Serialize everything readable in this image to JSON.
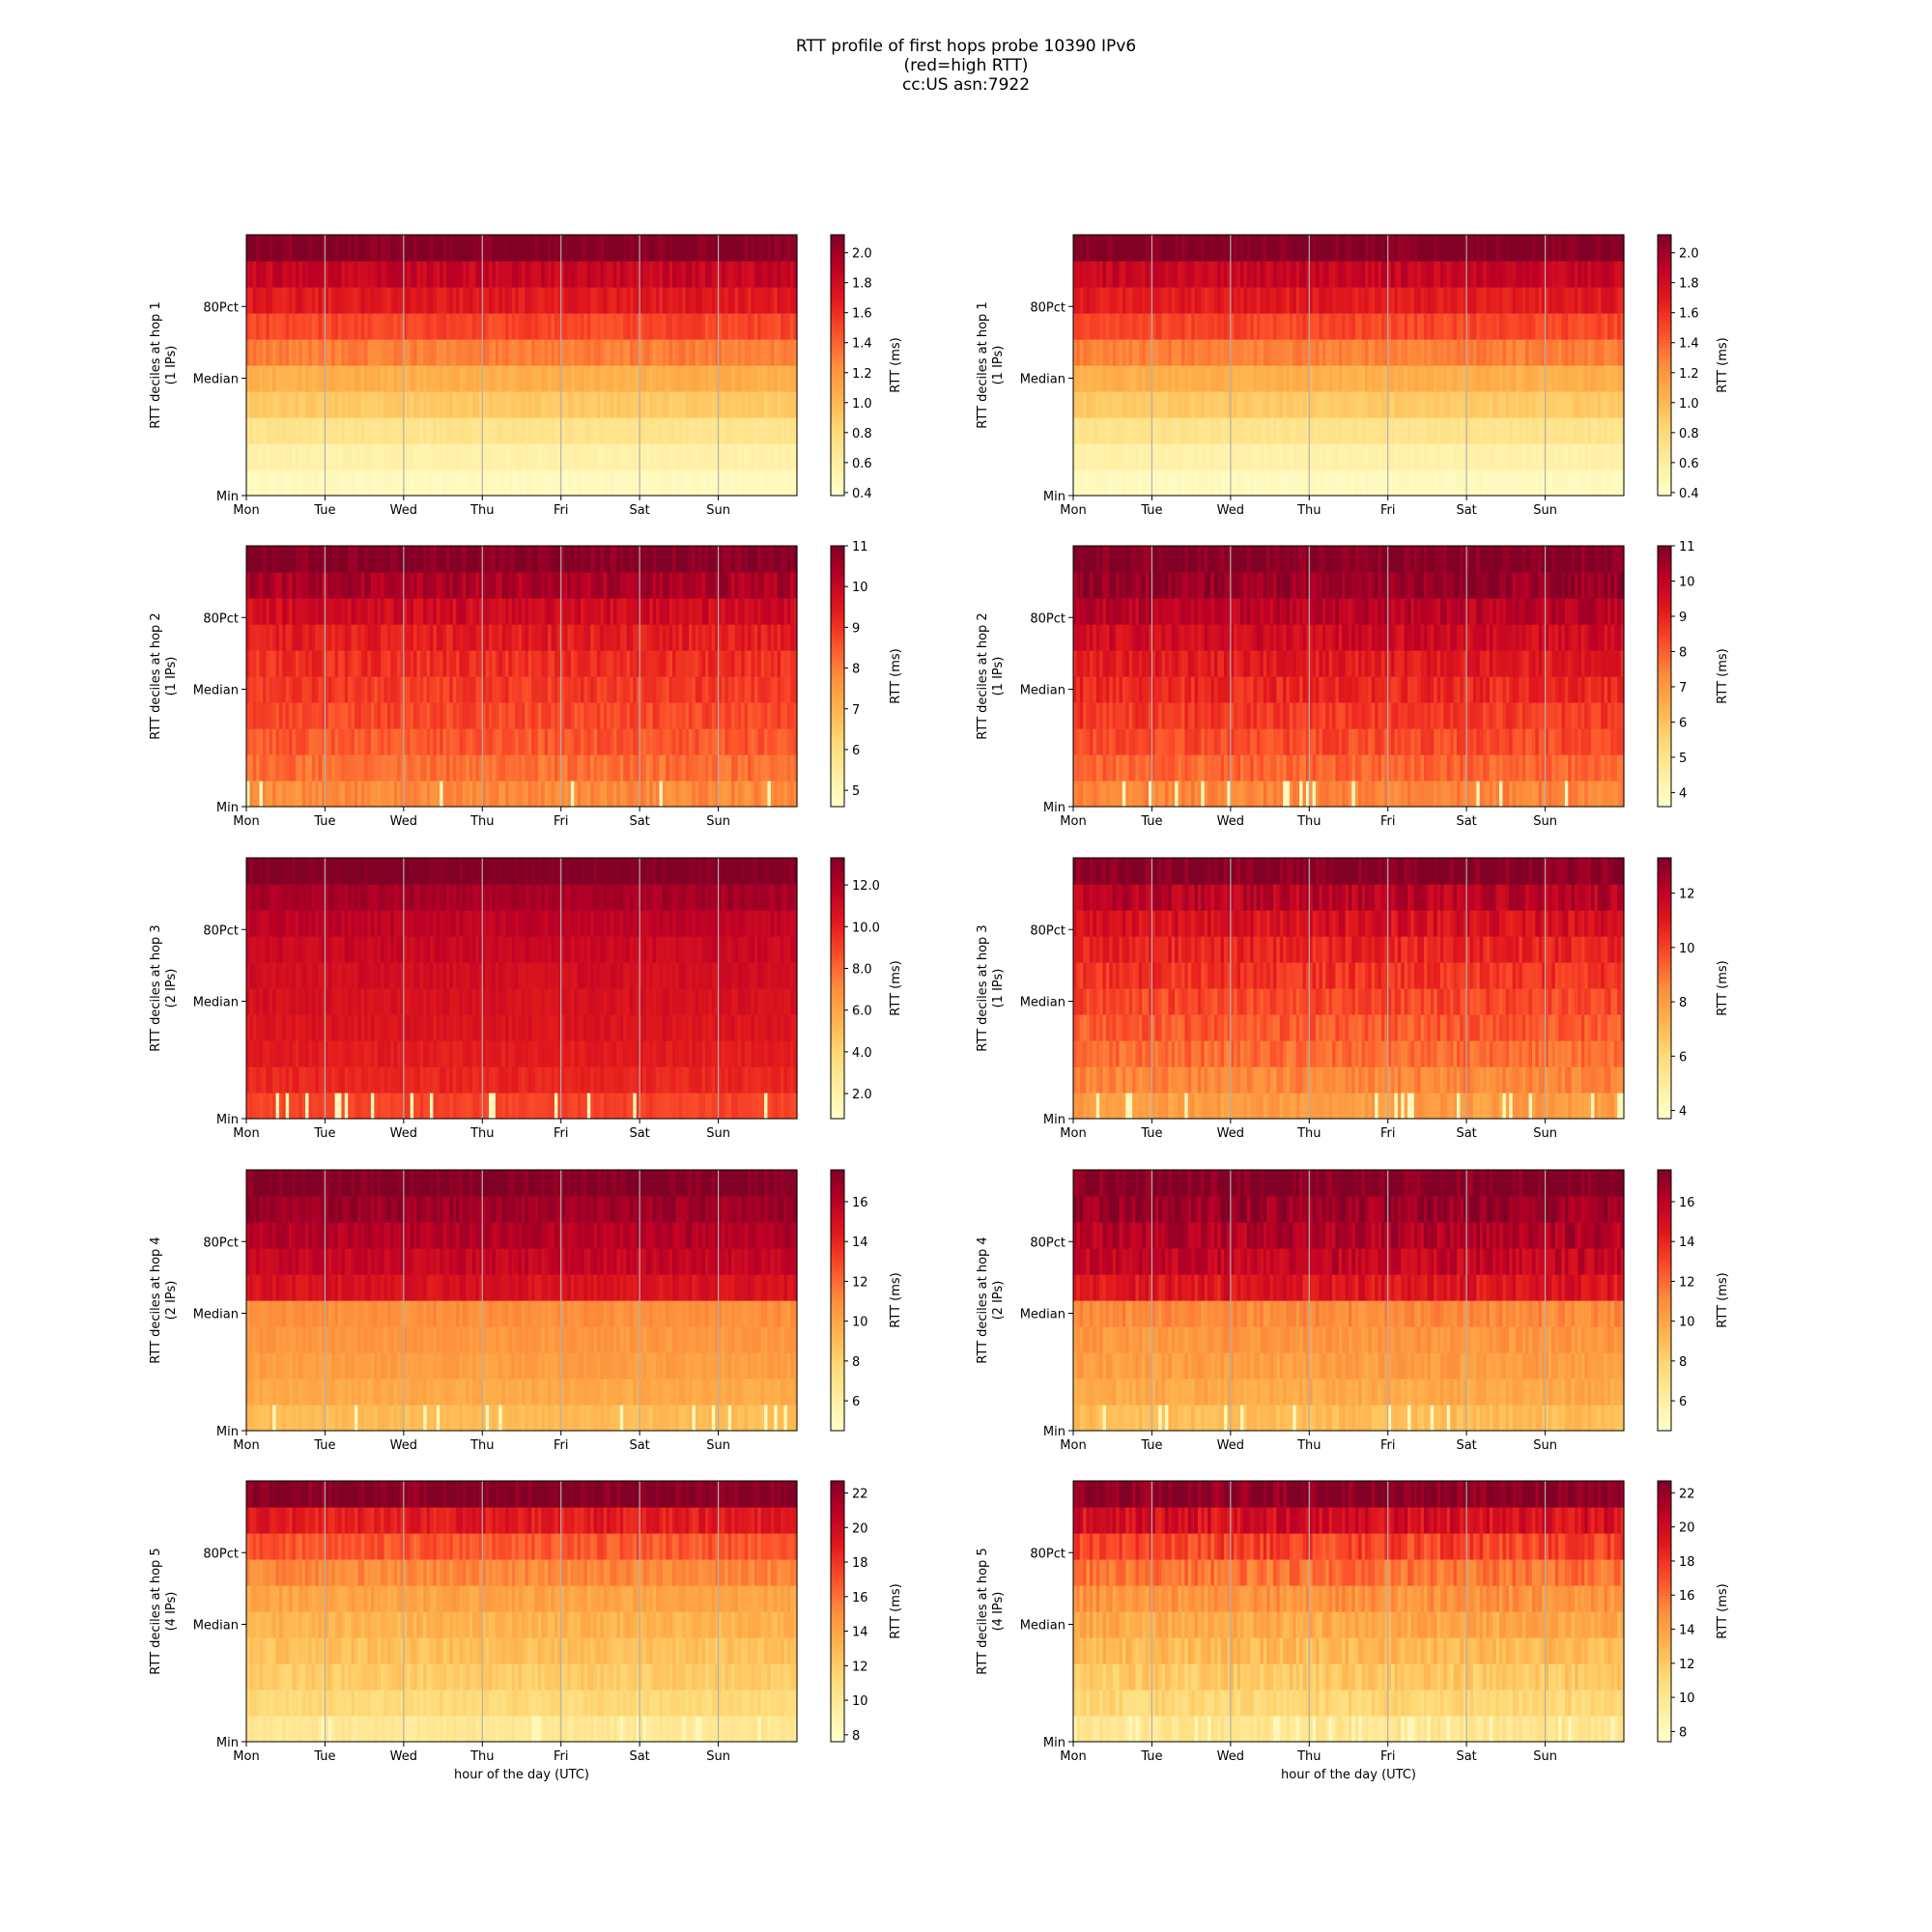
{
  "figure": {
    "title_lines": [
      "RTT profile of first hops probe 10390 IPv6",
      "(red=high RTT)",
      "cc:US asn:7922"
    ],
    "xlabel": "hour of the day (UTC)"
  },
  "chart_data": [
    {
      "type": "heatmap",
      "id": "hop1-left",
      "ylabel": "RTT deciles at hop 1",
      "ylabel2": "(1 IPs)",
      "cbar_label": "RTT (ms)",
      "xticks": [
        "Mon",
        "Tue",
        "Wed",
        "Thu",
        "Fri",
        "Sat",
        "Sun"
      ],
      "yticks": [
        "Min",
        "Median",
        "80Pct"
      ],
      "clim": [
        0.38,
        2.12
      ],
      "cbar_ticks": [
        0.4,
        0.6,
        0.8,
        1.0,
        1.2,
        1.4,
        1.6,
        1.8,
        2.0
      ],
      "decile_profile": [
        0.45,
        0.55,
        0.7,
        0.9,
        1.05,
        1.3,
        1.5,
        1.7,
        1.85,
        2.12
      ],
      "variability": 0.05,
      "xlabel": false
    },
    {
      "type": "heatmap",
      "id": "hop1-right",
      "ylabel": "RTT deciles at hop 1",
      "ylabel2": "(1 IPs)",
      "cbar_label": "RTT (ms)",
      "xticks": [
        "Mon",
        "Tue",
        "Wed",
        "Thu",
        "Fri",
        "Sat",
        "Sun"
      ],
      "yticks": [
        "Min",
        "Median",
        "80Pct"
      ],
      "clim": [
        0.38,
        2.12
      ],
      "cbar_ticks": [
        0.4,
        0.6,
        0.8,
        1.0,
        1.2,
        1.4,
        1.6,
        1.8,
        2.0
      ],
      "decile_profile": [
        0.45,
        0.55,
        0.7,
        0.9,
        1.05,
        1.3,
        1.5,
        1.7,
        1.85,
        2.12
      ],
      "variability": 0.05,
      "xlabel": false
    },
    {
      "type": "heatmap",
      "id": "hop2-left",
      "ylabel": "RTT deciles at hop 2",
      "ylabel2": "(1 IPs)",
      "cbar_label": "RTT (ms)",
      "xticks": [
        "Mon",
        "Tue",
        "Wed",
        "Thu",
        "Fri",
        "Sat",
        "Sun"
      ],
      "yticks": [
        "Min",
        "Median",
        "80Pct"
      ],
      "clim": [
        4.6,
        11
      ],
      "cbar_ticks": [
        5,
        6,
        7,
        8,
        9,
        10,
        11
      ],
      "decile_profile": [
        7.8,
        8.2,
        8.5,
        8.7,
        8.9,
        9.1,
        9.4,
        9.8,
        10.4,
        11
      ],
      "variability": 0.04,
      "xlabel": false
    },
    {
      "type": "heatmap",
      "id": "hop2-right",
      "ylabel": "RTT deciles at hop 2",
      "ylabel2": "(1 IPs)",
      "cbar_label": "RTT (ms)",
      "xticks": [
        "Mon",
        "Tue",
        "Wed",
        "Thu",
        "Fri",
        "Sat",
        "Sun"
      ],
      "yticks": [
        "Min",
        "Median",
        "80Pct"
      ],
      "clim": [
        3.6,
        11
      ],
      "cbar_ticks": [
        4,
        5,
        6,
        7,
        8,
        9,
        10,
        11
      ],
      "decile_profile": [
        7.4,
        7.9,
        8.3,
        8.6,
        8.9,
        9.2,
        9.6,
        10.1,
        10.6,
        11
      ],
      "variability": 0.05,
      "xlabel": false
    },
    {
      "type": "heatmap",
      "id": "hop3-left",
      "ylabel": "RTT deciles at hop 3",
      "ylabel2": "(2 IPs)",
      "cbar_label": "RTT (ms)",
      "xticks": [
        "Mon",
        "Tue",
        "Wed",
        "Thu",
        "Fri",
        "Sat",
        "Sun"
      ],
      "yticks": [
        "Min",
        "Median",
        "80Pct"
      ],
      "clim": [
        0.8,
        13.3
      ],
      "cbar_ticks": [
        2,
        4,
        6,
        8,
        10,
        12
      ],
      "decile_profile": [
        9.0,
        9.8,
        10.2,
        10.5,
        10.7,
        10.9,
        11.2,
        11.6,
        12.3,
        13.3
      ],
      "variability": 0.04,
      "xlabel": false
    },
    {
      "type": "heatmap",
      "id": "hop3-right",
      "ylabel": "RTT deciles at hop 3",
      "ylabel2": "(1 IPs)",
      "cbar_label": "RTT (ms)",
      "xticks": [
        "Mon",
        "Tue",
        "Wed",
        "Thu",
        "Fri",
        "Sat",
        "Sun"
      ],
      "yticks": [
        "Min",
        "Median",
        "80Pct"
      ],
      "clim": [
        3.7,
        13.3
      ],
      "cbar_ticks": [
        4,
        6,
        8,
        10,
        12
      ],
      "decile_profile": [
        8.0,
        8.6,
        9.1,
        9.5,
        9.9,
        10.3,
        10.7,
        11.3,
        12.1,
        13.3
      ],
      "variability": 0.06,
      "xlabel": false
    },
    {
      "type": "heatmap",
      "id": "hop4-left",
      "ylabel": "RTT deciles at hop 4",
      "ylabel2": "(2 IPs)",
      "cbar_label": "RTT (ms)",
      "xticks": [
        "Mon",
        "Tue",
        "Wed",
        "Thu",
        "Fri",
        "Sat",
        "Sun"
      ],
      "yticks": [
        "Min",
        "Median",
        "80Pct"
      ],
      "clim": [
        4.5,
        17.6
      ],
      "cbar_ticks": [
        6,
        8,
        10,
        12,
        14,
        16
      ],
      "decile_profile": [
        9.0,
        9.8,
        10.3,
        10.6,
        10.9,
        14.8,
        15.6,
        16.2,
        16.8,
        17.6
      ],
      "variability": 0.04,
      "xlabel": false
    },
    {
      "type": "heatmap",
      "id": "hop4-right",
      "ylabel": "RTT deciles at hop 4",
      "ylabel2": "(2 IPs)",
      "cbar_label": "RTT (ms)",
      "xticks": [
        "Mon",
        "Tue",
        "Wed",
        "Thu",
        "Fri",
        "Sat",
        "Sun"
      ],
      "yticks": [
        "Min",
        "Median",
        "80Pct"
      ],
      "clim": [
        4.5,
        17.6
      ],
      "cbar_ticks": [
        6,
        8,
        10,
        12,
        14,
        16
      ],
      "decile_profile": [
        9.0,
        9.8,
        10.3,
        10.6,
        11.0,
        14.6,
        15.6,
        16.2,
        16.8,
        17.6
      ],
      "variability": 0.06,
      "xlabel": false
    },
    {
      "type": "heatmap",
      "id": "hop5-left",
      "ylabel": "RTT deciles at hop 5",
      "ylabel2": "(4 IPs)",
      "cbar_label": "RTT (ms)",
      "xticks": [
        "Mon",
        "Tue",
        "Wed",
        "Thu",
        "Fri",
        "Sat",
        "Sun"
      ],
      "yticks": [
        "Min",
        "Median",
        "80Pct"
      ],
      "clim": [
        7.6,
        22.7
      ],
      "cbar_ticks": [
        8,
        10,
        12,
        14,
        16,
        18,
        20,
        22
      ],
      "decile_profile": [
        10.0,
        11.2,
        12.0,
        12.6,
        13.2,
        14.0,
        15.2,
        16.8,
        19.0,
        22.7
      ],
      "variability": 0.05,
      "xlabel": true
    },
    {
      "type": "heatmap",
      "id": "hop5-right",
      "ylabel": "RTT deciles at hop 5",
      "ylabel2": "(4 IPs)",
      "cbar_label": "RTT (ms)",
      "xticks": [
        "Mon",
        "Tue",
        "Wed",
        "Thu",
        "Fri",
        "Sat",
        "Sun"
      ],
      "yticks": [
        "Min",
        "Median",
        "80Pct"
      ],
      "clim": [
        7.4,
        22.7
      ],
      "cbar_ticks": [
        8,
        10,
        12,
        14,
        16,
        18,
        20,
        22
      ],
      "decile_profile": [
        10.0,
        11.2,
        12.0,
        12.8,
        13.6,
        14.6,
        15.8,
        17.4,
        19.6,
        22.7
      ],
      "variability": 0.07,
      "xlabel": true
    }
  ]
}
